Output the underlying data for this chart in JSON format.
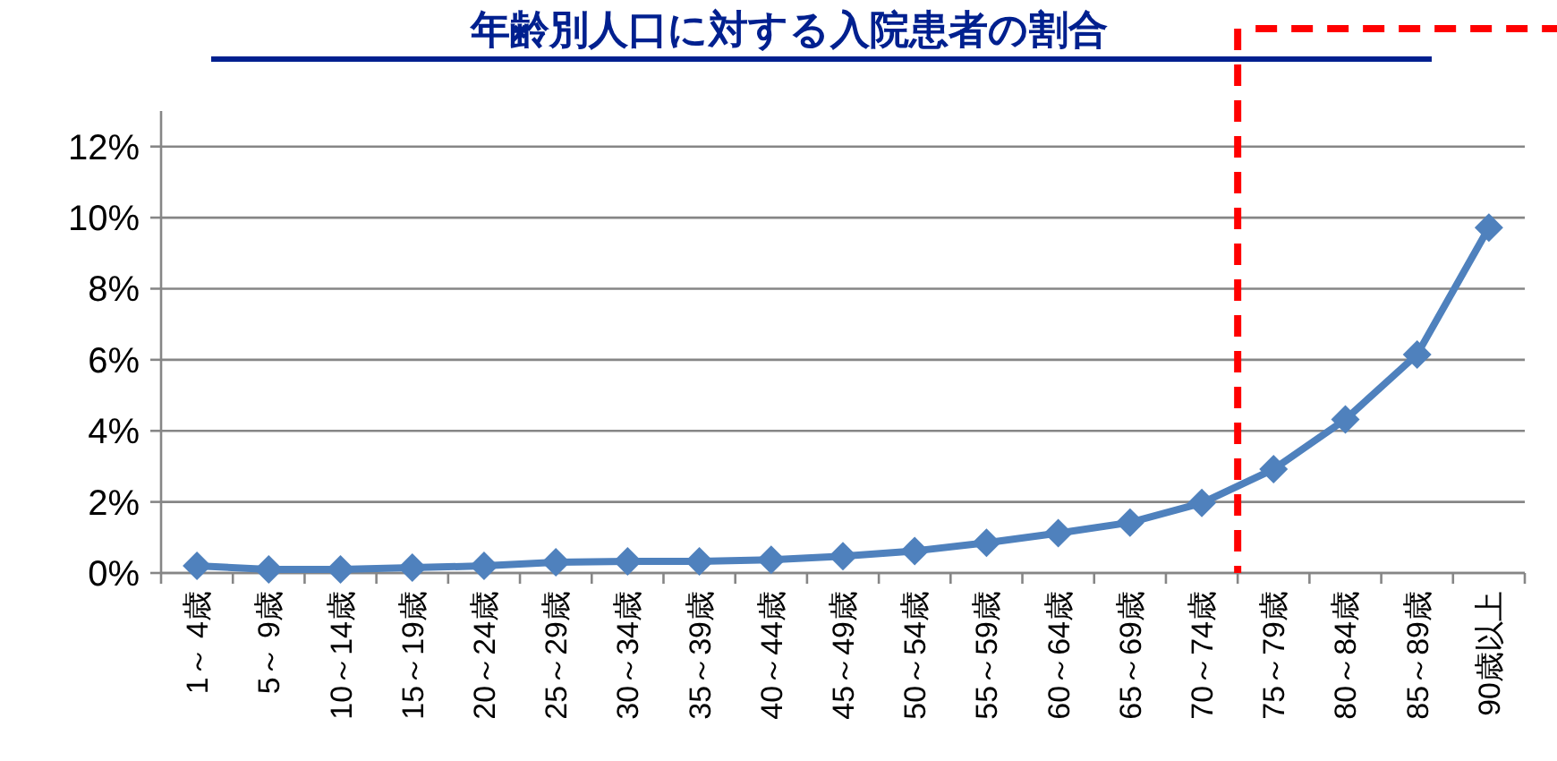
{
  "chart_data": {
    "type": "line",
    "title": "年齢別人口に対する入院患者の割合",
    "categories": [
      "1～ 4歳",
      "5～ 9歳",
      "10～14歳",
      "15～19歳",
      "20～24歳",
      "25～29歳",
      "30～34歳",
      "35～39歳",
      "40～44歳",
      "45～49歳",
      "50～54歳",
      "55～59歳",
      "60～64歳",
      "65～69歳",
      "70～74歳",
      "75～79歳",
      "80～84歳",
      "85～89歳",
      "90歳以上"
    ],
    "series": [
      {
        "color": "#4f81bd",
        "values": [
          0.2,
          0.1,
          0.1,
          0.15,
          0.2,
          0.3,
          0.33,
          0.33,
          0.37,
          0.47,
          0.62,
          0.85,
          1.12,
          1.42,
          1.97,
          2.92,
          4.32,
          6.15,
          9.72
        ]
      }
    ],
    "ylim": [
      0,
      13
    ],
    "yticks": [
      {
        "value": 0,
        "label": "0%"
      },
      {
        "value": 2,
        "label": "2%"
      },
      {
        "value": 4,
        "label": "4%"
      },
      {
        "value": 6,
        "label": "6%"
      },
      {
        "value": 8,
        "label": "8%"
      },
      {
        "value": 10,
        "label": "10%"
      },
      {
        "value": 12,
        "label": "12%"
      }
    ],
    "grid": "y",
    "marker": "diamond",
    "line_style": "solid"
  }
}
